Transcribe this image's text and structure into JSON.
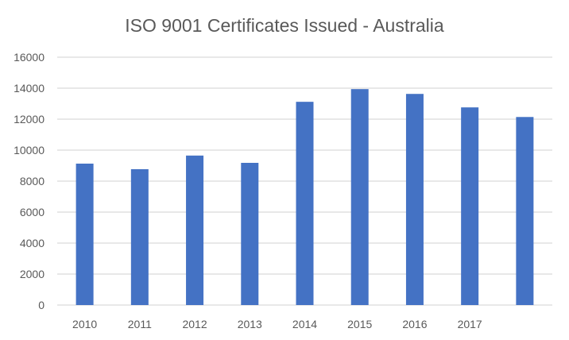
{
  "chart_data": {
    "type": "bar",
    "title": "ISO 9001 Certificates Issued - Australia",
    "xlabel": "",
    "ylabel": "",
    "categories": [
      "2010",
      "2011",
      "2012",
      "2013",
      "2014",
      "2015",
      "2016",
      "2017",
      ""
    ],
    "values": [
      9130,
      8770,
      9650,
      9180,
      13120,
      13940,
      13630,
      12760,
      12140
    ],
    "ylim": [
      0,
      16000
    ],
    "yticks": [
      "0",
      "2000",
      "4000",
      "6000",
      "8000",
      "10000",
      "12000",
      "14000",
      "16000"
    ],
    "grid": true,
    "legend": "none",
    "bar_color": "#4472C4",
    "grid_color": "#D9D9D9"
  }
}
